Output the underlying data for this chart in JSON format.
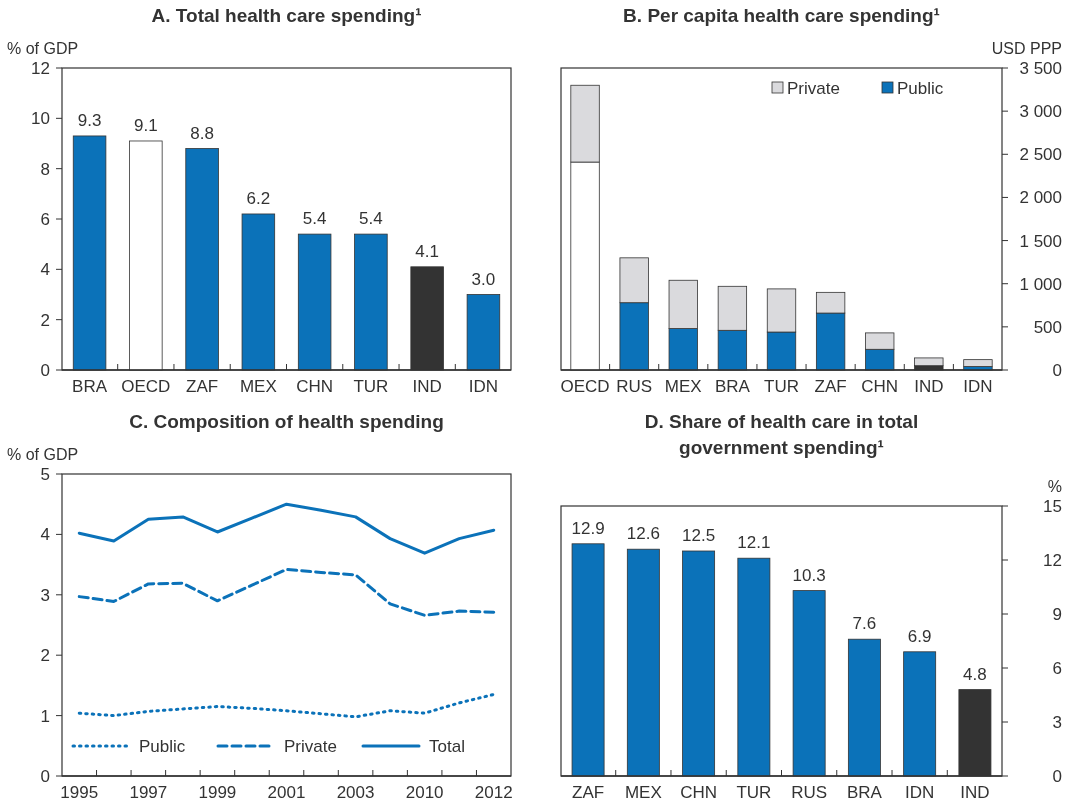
{
  "chart_data": [
    {
      "type": "bar",
      "title": "A. Total health care spending¹",
      "ylabel": "% of GDP",
      "categories": [
        "BRA",
        "OECD",
        "ZAF",
        "MEX",
        "CHN",
        "TUR",
        "IND",
        "IDN"
      ],
      "values": [
        9.3,
        9.1,
        8.8,
        6.2,
        5.4,
        5.4,
        4.1,
        3.0
      ],
      "value_labels": [
        "9.3",
        "9.1",
        "8.8",
        "6.2",
        "5.4",
        "5.4",
        "4.1",
        "3.0"
      ],
      "colors": [
        "#0b72b9",
        "#ffffff",
        "#0b72b9",
        "#0b72b9",
        "#0b72b9",
        "#0b72b9",
        "#333333",
        "#0b72b9"
      ],
      "ylim": [
        0,
        12
      ],
      "yticks": [
        0,
        2,
        4,
        6,
        8,
        10,
        12
      ],
      "grid": false,
      "legend": false
    },
    {
      "type": "bar",
      "title": "B. Per capita health care spending¹",
      "y2label": "USD PPP",
      "categories": [
        "OECD",
        "RUS",
        "MEX",
        "BRA",
        "TUR",
        "ZAF",
        "CHN",
        "IND",
        "IDN"
      ],
      "stacked": true,
      "series": [
        {
          "name": "Public",
          "color": "#0b72b9",
          "colors": [
            "#ffffff",
            "#0b72b9",
            "#0b72b9",
            "#0b72b9",
            "#0b72b9",
            "#0b72b9",
            "#0b72b9",
            "#333333",
            "#0b72b9"
          ],
          "values": [
            2410,
            780,
            480,
            460,
            440,
            660,
            240,
            50,
            40
          ],
          "axis": "y2"
        },
        {
          "name": "Private",
          "color": "#dadadd",
          "values": [
            890,
            520,
            560,
            510,
            500,
            240,
            190,
            90,
            80
          ],
          "axis": "y2"
        }
      ],
      "y2lim": [
        0,
        3500
      ],
      "y2ticks": [
        0,
        500,
        {
          "value": 1000,
          "label": "1 000"
        },
        {
          "value": 1500,
          "label": "1 500"
        },
        {
          "value": 2000,
          "label": "2 000"
        },
        {
          "value": 2500,
          "label": "2 500"
        },
        {
          "value": 3000,
          "label": "3 000"
        },
        {
          "value": 3500,
          "label": "3 500"
        }
      ],
      "grid": false,
      "legend": "top right"
    },
    {
      "type": "line",
      "title": "C. Composition of health spending",
      "ylabel": "% of GDP",
      "categories": [
        "1995",
        null,
        "1997",
        null,
        "1999",
        null,
        "2001",
        null,
        "2003",
        null,
        "2010",
        null,
        "2012"
      ],
      "series": [
        {
          "name": "Public",
          "color": "#0b72b9",
          "line_style": "dotted",
          "values": [
            1.04,
            1.0,
            1.07,
            1.11,
            1.15,
            1.12,
            1.08,
            1.03,
            0.98,
            1.08,
            1.04,
            1.21,
            1.35
          ]
        },
        {
          "name": "Private",
          "color": "#0b72b9",
          "line_style": "dashed",
          "values": [
            2.97,
            2.89,
            3.18,
            3.19,
            2.9,
            3.16,
            3.42,
            3.37,
            3.33,
            2.85,
            2.66,
            2.73,
            2.71
          ]
        },
        {
          "name": "Total",
          "color": "#0b72b9",
          "line_style": "solid",
          "values": [
            4.02,
            3.89,
            4.25,
            4.29,
            4.04,
            4.27,
            4.5,
            4.4,
            4.29,
            3.93,
            3.69,
            3.93,
            4.07
          ]
        }
      ],
      "ylim": [
        0,
        5
      ],
      "yticks": [
        0,
        1,
        2,
        3,
        4,
        5
      ],
      "grid": false,
      "legend": "bottom",
      "marker": "none"
    },
    {
      "type": "bar",
      "title": "D. Share of health care in total government spending¹",
      "y2label": "%",
      "categories": [
        "ZAF",
        "MEX",
        "CHN",
        "TUR",
        "RUS",
        "BRA",
        "IDN",
        "IND"
      ],
      "series": [
        {
          "values": [
            12.9,
            12.6,
            12.5,
            12.1,
            10.3,
            7.6,
            6.9,
            4.8
          ],
          "value_labels": [
            "12.9",
            "12.6",
            "12.5",
            "12.1",
            "10.3",
            "7.6",
            "6.9",
            "4.8"
          ],
          "colors": [
            "#0b72b9",
            "#0b72b9",
            "#0b72b9",
            "#0b72b9",
            "#0b72b9",
            "#0b72b9",
            "#0b72b9",
            "#333333"
          ],
          "axis": "y2"
        }
      ],
      "y2lim": [
        0,
        15
      ],
      "y2ticks": [
        0,
        3,
        6,
        9,
        12,
        15
      ],
      "grid": false,
      "legend": false
    }
  ]
}
